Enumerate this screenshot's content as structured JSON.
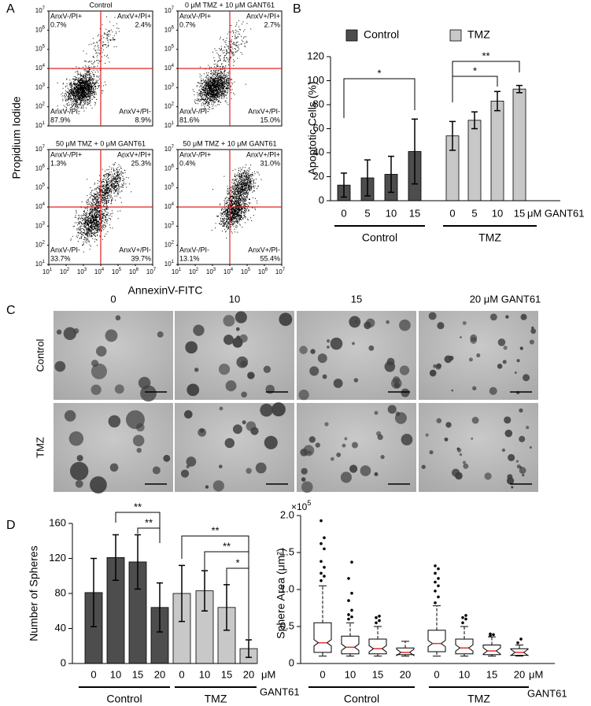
{
  "panel_labels": [
    "A",
    "B",
    "C",
    "D"
  ],
  "flow": {
    "y_label": "Propidium Iodide",
    "x_label": "AnnexinV-FITC",
    "gate": 4,
    "ticks": [
      {
        "value": 1,
        "label": "10"
      },
      {
        "value": 2,
        "label": "10"
      },
      {
        "value": 3,
        "label": "10"
      },
      {
        "value": 4,
        "label": "10"
      },
      {
        "value": 5,
        "label": "10"
      },
      {
        "value": 6,
        "label": "10"
      },
      {
        "value": 7,
        "label": "10"
      }
    ],
    "plots": [
      {
        "title": "Control",
        "quadrants": [
          [
            "AnxV-/PI+",
            "0.7%"
          ],
          [
            "AnxV+/PI+",
            "2.4%"
          ],
          [
            "AnxV-/PI-",
            "87.9%"
          ],
          [
            "AnxV+/PI-",
            "8.9%"
          ]
        ]
      },
      {
        "title": "0 μM TMZ + 10 μM GANT61",
        "quadrants": [
          [
            "AnxV-/PI+",
            "0.7%"
          ],
          [
            "AnxV+/PI+",
            "2.7%"
          ],
          [
            "AnxV-/PI-",
            "81.6%"
          ],
          [
            "AnxV+/PI-",
            "15.0%"
          ]
        ]
      },
      {
        "title": "50 μM TMZ + 0 μM GANT61",
        "quadrants": [
          [
            "AnxV-/PI+",
            "1.3%"
          ],
          [
            "AnxV+/PI+",
            "25.3%"
          ],
          [
            "AnxV-/PI-",
            "33.7%"
          ],
          [
            "AnxV+/PI-",
            "39.7%"
          ]
        ]
      },
      {
        "title": "50 μM TMZ + 10 μM GANT61",
        "quadrants": [
          [
            "AnxV-/PI+",
            "0.4%"
          ],
          [
            "AnxV+/PI+",
            "31.0%"
          ],
          [
            "AnxV-/PI-",
            "13.1%"
          ],
          [
            "AnxV+/PI-",
            "55.4%"
          ]
        ]
      }
    ]
  },
  "micrographs": {
    "columns": [
      "0",
      "10",
      "15",
      "20 μM GANT61"
    ],
    "rows": [
      "Control",
      "TMZ"
    ]
  },
  "chart_data": [
    {
      "type": "bar",
      "y_label": "Apoptotic Cells (%)",
      "categories": [
        "0",
        "5",
        "10",
        "15"
      ],
      "x_unit": [
        "μM GANT61"
      ],
      "series": [
        {
          "name": "Control",
          "color": "#4d4d4d",
          "values": [
            13,
            19,
            22,
            41
          ],
          "errors": [
            10,
            15,
            15,
            27
          ]
        },
        {
          "name": "TMZ",
          "color": "#c8c8c8",
          "values": [
            54,
            67,
            83,
            93
          ],
          "errors": [
            12,
            7,
            8,
            3
          ]
        }
      ],
      "ylim": [
        0,
        120
      ],
      "yticks": [
        0,
        20,
        40,
        60,
        80,
        100,
        120
      ],
      "annotations": [
        "*",
        "*",
        "**"
      ],
      "legend": "top"
    },
    {
      "type": "bar",
      "y_label": "Number of Spheres",
      "categories": [
        "0",
        "10",
        "15",
        "20"
      ],
      "x_unit": [
        "μM",
        "GANT61"
      ],
      "series": [
        {
          "name": "Control",
          "color": "#4d4d4d",
          "values": [
            81,
            121,
            116,
            64
          ],
          "errors": [
            39,
            26,
            31,
            28
          ]
        },
        {
          "name": "TMZ",
          "color": "#c8c8c8",
          "values": [
            80,
            83,
            64,
            17
          ],
          "errors": [
            32,
            23,
            26,
            10
          ]
        }
      ],
      "ylim": [
        0,
        160
      ],
      "yticks": [
        0,
        40,
        80,
        120,
        160
      ],
      "annotations": [
        "**",
        "**",
        "**",
        "**",
        "*"
      ]
    },
    {
      "type": "box",
      "y_label": "Sphere Area (μm²)",
      "y_multiplier": "×10",
      "y_exponent": 5,
      "categories": [
        "0",
        "10",
        "15",
        "20"
      ],
      "x_unit": [
        "μM",
        "GANT61"
      ],
      "median_color": "#e0302c",
      "ylim": [
        0,
        2.0
      ],
      "yticks": [
        0,
        0.5,
        {
          "value": 1,
          "label": "1.0"
        },
        1.5,
        {
          "value": 2,
          "label": "2.0"
        }
      ],
      "series": [
        {
          "name": "Control",
          "boxes": [
            {
              "whislo": 0.1,
              "q1": 0.15,
              "med": 0.28,
              "q3": 0.55,
              "whishi": 1.05,
              "fliers": [
                1.12,
                1.18,
                1.22,
                1.3,
                1.38,
                1.55,
                1.62,
                1.7,
                1.93
              ]
            },
            {
              "whislo": 0.1,
              "q1": 0.13,
              "med": 0.22,
              "q3": 0.37,
              "whishi": 0.55,
              "fliers": [
                0.6,
                0.63,
                0.66,
                0.72,
                0.85,
                0.95,
                1.15,
                1.37
              ]
            },
            {
              "whislo": 0.1,
              "q1": 0.13,
              "med": 0.2,
              "q3": 0.33,
              "whishi": 0.5,
              "fliers": [
                0.55,
                0.58,
                0.62,
                0.64
              ]
            },
            {
              "whislo": 0.1,
              "q1": 0.12,
              "med": 0.15,
              "q3": 0.21,
              "whishi": 0.3,
              "fliers": []
            }
          ]
        },
        {
          "name": "TMZ",
          "boxes": [
            {
              "whislo": 0.1,
              "q1": 0.16,
              "med": 0.27,
              "q3": 0.45,
              "whishi": 0.78,
              "fliers": [
                0.82,
                0.9,
                0.98,
                1.05,
                1.1,
                1.15,
                1.22,
                1.28,
                1.32
              ]
            },
            {
              "whislo": 0.1,
              "q1": 0.13,
              "med": 0.21,
              "q3": 0.33,
              "whishi": 0.5,
              "fliers": [
                0.55,
                0.6,
                0.62,
                0.65
              ]
            },
            {
              "whislo": 0.1,
              "q1": 0.12,
              "med": 0.17,
              "q3": 0.25,
              "whishi": 0.36,
              "fliers": [
                0.38,
                0.39,
                0.4
              ]
            },
            {
              "whislo": 0.1,
              "q1": 0.11,
              "med": 0.15,
              "q3": 0.2,
              "whishi": 0.25,
              "fliers": [
                0.28,
                0.33
              ]
            }
          ]
        }
      ]
    }
  ]
}
